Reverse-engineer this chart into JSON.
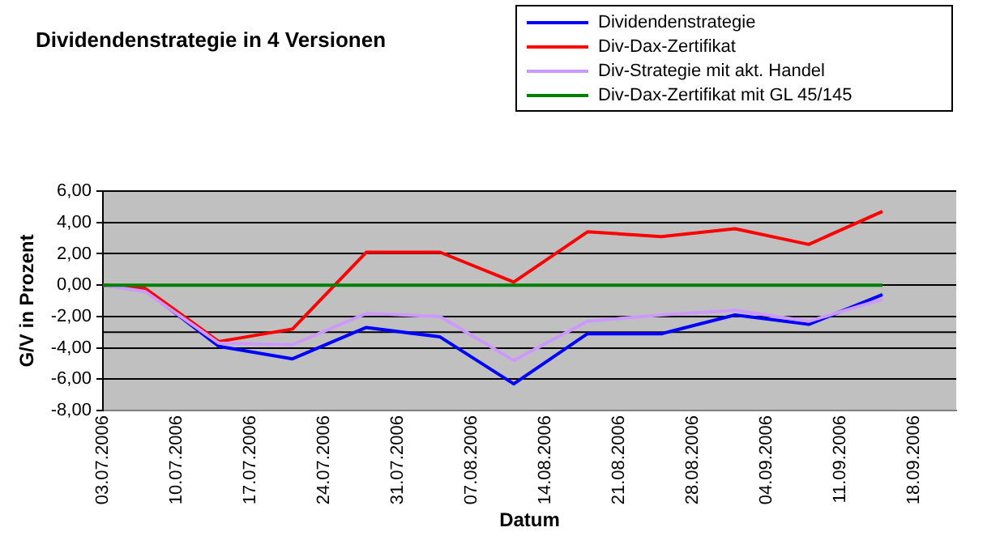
{
  "chart_data": {
    "type": "line",
    "title": "Dividendenstrategie in 4 Versionen",
    "xlabel": "Datum",
    "ylabel": "G/V in Prozent",
    "x": [
      "2006-07-03",
      "2006-07-07",
      "2006-07-14",
      "2006-07-21",
      "2006-07-28",
      "2006-08-04",
      "2006-08-11",
      "2006-08-18",
      "2006-08-25",
      "2006-09-01",
      "2006-09-08",
      "2006-09-15"
    ],
    "series": [
      {
        "name": "Dividendenstrategie",
        "color": "#0000ff",
        "values": [
          0,
          -0.3,
          -3.9,
          -4.7,
          -2.7,
          -3.3,
          -6.3,
          -3.1,
          -3.1,
          -1.9,
          -2.5,
          -0.6
        ]
      },
      {
        "name": "Div-Dax-Zertifikat",
        "color": "#ff0000",
        "values": [
          0,
          -0.2,
          -3.6,
          -2.8,
          2.1,
          2.1,
          0.2,
          3.4,
          3.1,
          3.6,
          2.6,
          4.7
        ]
      },
      {
        "name": "Div-Strategie mit akt. Handel",
        "color": "#cc99ff",
        "values": [
          0,
          -0.4,
          -3.7,
          -3.8,
          -1.8,
          -2.0,
          -4.8,
          -2.3,
          -1.9,
          -1.6,
          -2.3,
          -0.9
        ]
      },
      {
        "name": "Div-Dax-Zertifikat mit GL 45/145",
        "color": "#008000",
        "values": [
          0,
          0,
          0,
          0,
          0,
          0,
          0,
          0,
          0,
          0,
          0,
          0
        ]
      }
    ],
    "xlim": [
      "2006-07-03",
      "2006-09-22"
    ],
    "xticks": [
      {
        "value": "2006-07-03",
        "label": "03.07.2006"
      },
      {
        "value": "2006-07-10",
        "label": "10.07.2006"
      },
      {
        "value": "2006-07-17",
        "label": "17.07.2006"
      },
      {
        "value": "2006-07-24",
        "label": "24.07.2006"
      },
      {
        "value": "2006-07-31",
        "label": "31.07.2006"
      },
      {
        "value": "2006-08-07",
        "label": "07.08.2006"
      },
      {
        "value": "2006-08-14",
        "label": "14.08.2006"
      },
      {
        "value": "2006-08-21",
        "label": "21.08.2006"
      },
      {
        "value": "2006-08-28",
        "label": "28.08.2006"
      },
      {
        "value": "2006-09-04",
        "label": "04.09.2006"
      },
      {
        "value": "2006-09-11",
        "label": "11.09.2006"
      },
      {
        "value": "2006-09-18",
        "label": "18.09.2006"
      }
    ],
    "ylim": [
      -8,
      6
    ],
    "yticks": [
      {
        "value": -8,
        "label": "-8,00"
      },
      {
        "value": -6,
        "label": "-6,00"
      },
      {
        "value": -4,
        "label": "-4,00"
      },
      {
        "value": -2,
        "label": "-2,00"
      },
      {
        "value": 0,
        "label": "0,00"
      },
      {
        "value": 2,
        "label": "2,00"
      },
      {
        "value": 4,
        "label": "4,00"
      },
      {
        "value": 6,
        "label": "6,00"
      }
    ],
    "ref_lines": [
      {
        "axis": "y",
        "value": -3,
        "color": "#000000"
      }
    ],
    "grid": "y",
    "legend": "top right",
    "marker": "none",
    "line_style": "solid"
  }
}
